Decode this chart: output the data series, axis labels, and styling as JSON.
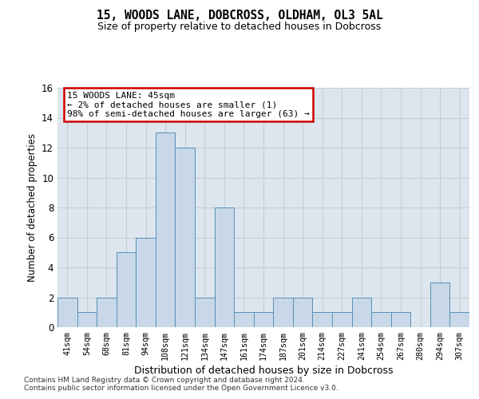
{
  "title1": "15, WOODS LANE, DOBCROSS, OLDHAM, OL3 5AL",
  "title2": "Size of property relative to detached houses in Dobcross",
  "xlabel": "Distribution of detached houses by size in Dobcross",
  "ylabel": "Number of detached properties",
  "categories": [
    "41sqm",
    "54sqm",
    "68sqm",
    "81sqm",
    "94sqm",
    "108sqm",
    "121sqm",
    "134sqm",
    "147sqm",
    "161sqm",
    "174sqm",
    "187sqm",
    "201sqm",
    "214sqm",
    "227sqm",
    "241sqm",
    "254sqm",
    "267sqm",
    "280sqm",
    "294sqm",
    "307sqm"
  ],
  "values": [
    2,
    1,
    2,
    5,
    6,
    13,
    12,
    2,
    8,
    1,
    1,
    2,
    2,
    1,
    1,
    2,
    1,
    1,
    0,
    3,
    1
  ],
  "bar_color": "#c8d8e8",
  "bar_edge_color": "#5590b8",
  "annotation_line1": "15 WOODS LANE: 45sqm",
  "annotation_line2": "← 2% of detached houses are smaller (1)",
  "annotation_line3": "98% of semi-detached houses are larger (63) →",
  "annotation_box_color": "#ffffff",
  "annotation_box_edge": "#cc0000",
  "ylim": [
    0,
    16
  ],
  "yticks": [
    0,
    2,
    4,
    6,
    8,
    10,
    12,
    14,
    16
  ],
  "grid_color": "#c8cdd4",
  "bg_color": "#dde6ef",
  "footer1": "Contains HM Land Registry data © Crown copyright and database right 2024.",
  "footer2": "Contains public sector information licensed under the Open Government Licence v3.0."
}
